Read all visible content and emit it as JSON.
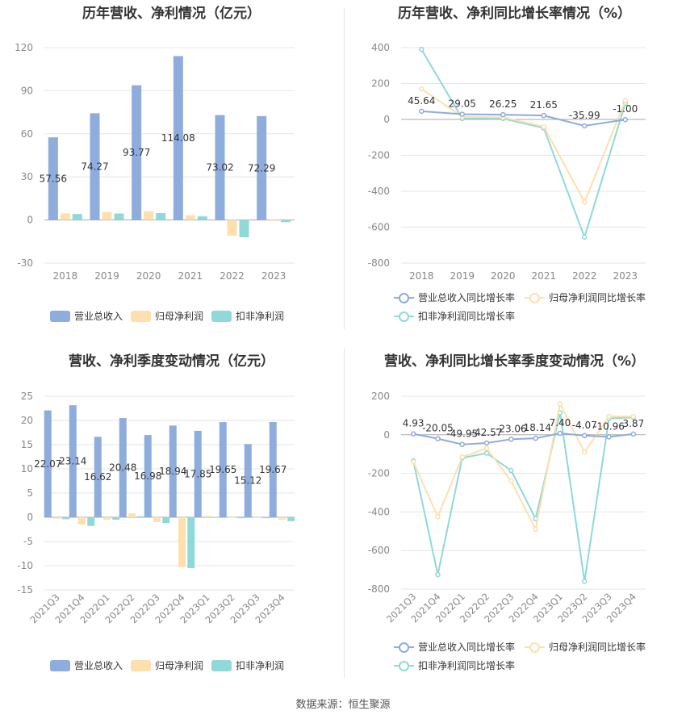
{
  "colors": {
    "revenue": "#8eacdc",
    "parent": "#fde0ad",
    "nonrec": "#8fd9d9"
  },
  "source": "数据来源：恒生聚源",
  "chart_data": [
    {
      "id": "annual_amount",
      "type": "bar",
      "title": "历年营收、净利情况（亿元）",
      "categories": [
        "2018",
        "2019",
        "2020",
        "2021",
        "2022",
        "2023"
      ],
      "ylim": [
        -30,
        120
      ],
      "yticks": [
        -30,
        0,
        30,
        60,
        90,
        120
      ],
      "series": [
        {
          "name": "营业总收入",
          "values": [
            57.56,
            74.27,
            93.77,
            114.08,
            73.02,
            72.29
          ],
          "labels": [
            "57.56",
            "74.27",
            "93.77",
            "114.08",
            "73.02",
            "72.29"
          ]
        },
        {
          "name": "归母净利润",
          "values": [
            4.6,
            5.4,
            6.0,
            3.3,
            -11.0,
            -0.6
          ]
        },
        {
          "name": "扣非净利润",
          "values": [
            4.2,
            4.5,
            4.8,
            2.5,
            -12.0,
            -1.5
          ]
        }
      ],
      "grid": true,
      "legend": "bottom"
    },
    {
      "id": "annual_growth",
      "type": "line",
      "title": "历年营收、净利同比增长率情况（%）",
      "categories": [
        "2018",
        "2019",
        "2020",
        "2021",
        "2022",
        "2023"
      ],
      "ylim": [
        -800,
        400
      ],
      "yticks": [
        -800,
        -600,
        -400,
        -200,
        0,
        200,
        400
      ],
      "series": [
        {
          "name": "营业总收入同比增长率",
          "values": [
            45.64,
            29.05,
            26.25,
            21.65,
            -35.99,
            -1.0
          ],
          "labels": [
            "45.64",
            "29.05",
            "26.25",
            "21.65",
            "-35.99",
            "-1.00"
          ]
        },
        {
          "name": "归母净利润同比增长率",
          "values": [
            170,
            15,
            12,
            -40,
            -460,
            105
          ]
        },
        {
          "name": "扣非净利润同比增长率",
          "values": [
            390,
            5,
            5,
            -48,
            -655,
            90
          ]
        }
      ],
      "grid": true,
      "legend": "bottom"
    },
    {
      "id": "quarterly_amount",
      "type": "bar",
      "title": "营收、净利季度变动情况（亿元）",
      "categories": [
        "2021Q3",
        "2021Q4",
        "2022Q1",
        "2022Q2",
        "2022Q3",
        "2022Q4",
        "2023Q1",
        "2023Q2",
        "2023Q3",
        "2023Q4"
      ],
      "ylim": [
        -15,
        25
      ],
      "yticks": [
        -15,
        -10,
        -5,
        0,
        5,
        10,
        15,
        20,
        25
      ],
      "series": [
        {
          "name": "营业总收入",
          "values": [
            22.07,
            23.14,
            16.62,
            20.48,
            16.98,
            18.94,
            17.85,
            19.65,
            15.12,
            19.67
          ],
          "labels": [
            "22.07",
            "23.14",
            "16.62",
            "20.48",
            "16.98",
            "18.94",
            "17.85",
            "19.65",
            "15.12",
            "19.67"
          ]
        },
        {
          "name": "归母净利润",
          "values": [
            -0.3,
            -1.5,
            -0.5,
            0.8,
            -1.0,
            -10.3,
            0.3,
            -0.1,
            -0.1,
            -0.5
          ]
        },
        {
          "name": "扣非净利润",
          "values": [
            -0.4,
            -1.8,
            -0.5,
            0.2,
            -1.2,
            -10.5,
            0.1,
            -0.2,
            -0.2,
            -0.8
          ]
        }
      ],
      "grid": true,
      "legend": "bottom"
    },
    {
      "id": "quarterly_growth",
      "type": "line",
      "title": "营收、净利同比增长率季度变动情况（%）",
      "categories": [
        "2021Q3",
        "2021Q4",
        "2022Q1",
        "2022Q2",
        "2022Q3",
        "2022Q4",
        "2023Q1",
        "2023Q2",
        "2023Q3",
        "2023Q4"
      ],
      "ylim": [
        -800,
        200
      ],
      "yticks": [
        -800,
        -600,
        -400,
        -200,
        0,
        200
      ],
      "series": [
        {
          "name": "营业总收入同比增长率",
          "values": [
            4.93,
            -20.05,
            -49.95,
            -42.57,
            -23.06,
            -18.14,
            7.4,
            -4.07,
            -10.96,
            3.87
          ],
          "labels": [
            "4.93",
            "-20.05",
            "-49.95",
            "-42.57",
            "-23.06",
            "-18.14",
            "7.40",
            "-4.07",
            "-10.96",
            "3.87"
          ]
        },
        {
          "name": "归母净利润同比增长率",
          "values": [
            -140,
            -425,
            -115,
            -70,
            -240,
            -490,
            160,
            -90,
            95,
            95
          ]
        },
        {
          "name": "扣非净利润同比增长率",
          "values": [
            -135,
            -725,
            -120,
            -95,
            -185,
            -435,
            115,
            -760,
            85,
            90
          ]
        }
      ],
      "grid": true,
      "legend": "bottom"
    }
  ]
}
